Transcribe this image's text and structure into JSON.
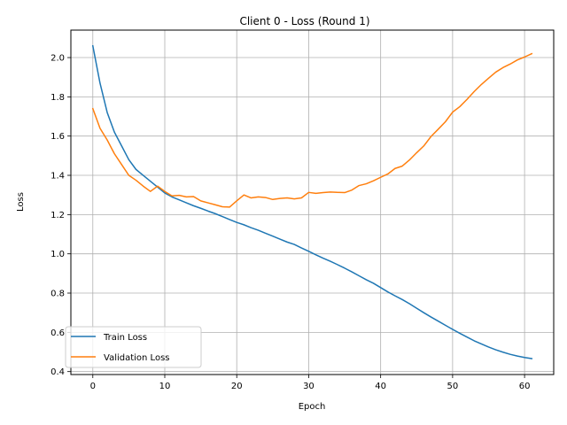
{
  "chart_data": {
    "type": "line",
    "title": "Client 0 - Loss (Round 1)",
    "xlabel": "Epoch",
    "ylabel": "Loss",
    "xlim": [
      -3.05,
      64.05
    ],
    "ylim": [
      0.385,
      2.14
    ],
    "x_ticks": [
      0,
      10,
      20,
      30,
      40,
      50,
      60
    ],
    "y_ticks": [
      0.4,
      0.6,
      0.8,
      1.0,
      1.2,
      1.4,
      1.6,
      1.8,
      2.0
    ],
    "y_tick_labels": [
      "0.4",
      "0.6",
      "0.8",
      "1.0",
      "1.2",
      "1.4",
      "1.6",
      "1.8",
      "2.0"
    ],
    "grid": true,
    "legend_position": "lower-left",
    "series": [
      {
        "name": "Train Loss",
        "color": "#1f77b4",
        "x": [
          0,
          1,
          2,
          3,
          4,
          5,
          6,
          7,
          8,
          9,
          10,
          11,
          12,
          13,
          14,
          15,
          16,
          17,
          18,
          19,
          20,
          21,
          22,
          23,
          24,
          25,
          26,
          27,
          28,
          29,
          30,
          31,
          32,
          33,
          34,
          35,
          36,
          37,
          38,
          39,
          40,
          41,
          42,
          43,
          44,
          45,
          46,
          47,
          48,
          49,
          50,
          51,
          52,
          53,
          54,
          55,
          56,
          57,
          58,
          59,
          60,
          61
        ],
        "values": [
          2.06,
          1.87,
          1.72,
          1.62,
          1.55,
          1.48,
          1.43,
          1.4,
          1.37,
          1.34,
          1.31,
          1.29,
          1.275,
          1.26,
          1.245,
          1.232,
          1.218,
          1.205,
          1.19,
          1.175,
          1.16,
          1.148,
          1.133,
          1.12,
          1.105,
          1.09,
          1.075,
          1.06,
          1.048,
          1.03,
          1.013,
          0.995,
          0.978,
          0.962,
          0.945,
          0.927,
          0.908,
          0.888,
          0.868,
          0.85,
          0.828,
          0.806,
          0.786,
          0.767,
          0.746,
          0.723,
          0.7,
          0.678,
          0.657,
          0.636,
          0.615,
          0.595,
          0.576,
          0.557,
          0.541,
          0.525,
          0.511,
          0.499,
          0.488,
          0.479,
          0.472,
          0.466
        ]
      },
      {
        "name": "Validation Loss",
        "color": "#ff7f0e",
        "x": [
          0,
          1,
          2,
          3,
          4,
          5,
          6,
          7,
          8,
          9,
          10,
          11,
          12,
          13,
          14,
          15,
          16,
          17,
          18,
          19,
          20,
          21,
          22,
          23,
          24,
          25,
          26,
          27,
          28,
          29,
          30,
          31,
          32,
          33,
          34,
          35,
          36,
          37,
          38,
          39,
          40,
          41,
          42,
          43,
          44,
          45,
          46,
          47,
          48,
          49,
          50,
          51,
          52,
          53,
          54,
          55,
          56,
          57,
          58,
          59,
          60,
          61
        ],
        "values": [
          1.74,
          1.64,
          1.58,
          1.51,
          1.455,
          1.4,
          1.375,
          1.345,
          1.318,
          1.345,
          1.318,
          1.295,
          1.298,
          1.29,
          1.292,
          1.27,
          1.26,
          1.25,
          1.24,
          1.238,
          1.27,
          1.3,
          1.285,
          1.29,
          1.287,
          1.277,
          1.282,
          1.285,
          1.28,
          1.285,
          1.313,
          1.308,
          1.312,
          1.315,
          1.313,
          1.312,
          1.325,
          1.348,
          1.357,
          1.372,
          1.39,
          1.407,
          1.435,
          1.447,
          1.478,
          1.515,
          1.55,
          1.598,
          1.635,
          1.673,
          1.722,
          1.75,
          1.787,
          1.827,
          1.863,
          1.895,
          1.926,
          1.949,
          1.967,
          1.988,
          2.003,
          2.02
        ]
      }
    ]
  }
}
